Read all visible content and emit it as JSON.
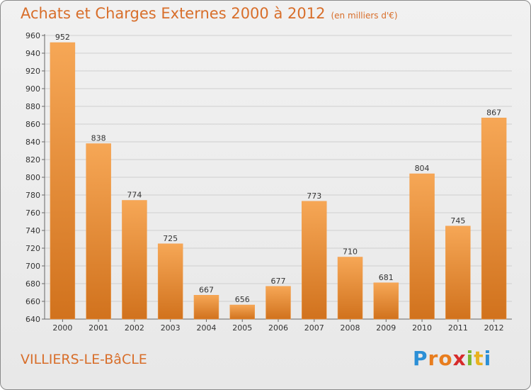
{
  "title": "Achats et Charges Externes 2000 à 2012",
  "subtitle": "(en milliers d'€)",
  "commune": "VILLIERS-LE-BâCLE",
  "logo": {
    "letters": [
      "P",
      "r",
      "o",
      "x",
      "i",
      "t",
      "i"
    ],
    "colors": [
      "#2b8fd6",
      "#e87d1e",
      "#e87d1e",
      "#d62b2b",
      "#7cb82f",
      "#e8b21e",
      "#2b8fd6"
    ]
  },
  "chart_data": {
    "type": "bar",
    "categories": [
      "2000",
      "2001",
      "2002",
      "2003",
      "2004",
      "2005",
      "2006",
      "2007",
      "2008",
      "2009",
      "2010",
      "2011",
      "2012"
    ],
    "values": [
      952,
      838,
      774,
      725,
      667,
      656,
      677,
      773,
      710,
      681,
      804,
      745,
      867
    ],
    "ylim": [
      640,
      960
    ],
    "yticks": [
      640,
      660,
      680,
      700,
      720,
      740,
      760,
      780,
      800,
      820,
      840,
      860,
      880,
      900,
      920,
      940,
      960
    ],
    "grid": true,
    "colors": {
      "bar_light": "#f6a756",
      "bar_dark": "#d1721d",
      "grid": "#cfcfcf",
      "axis_text": "#333333"
    }
  }
}
